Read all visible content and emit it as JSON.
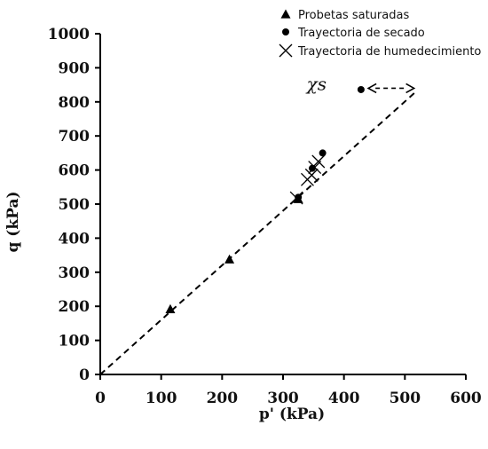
{
  "chart_data": {
    "type": "scatter",
    "title": "",
    "xlabel": "p' (kPa)",
    "ylabel": "q (kPa)",
    "xlim": [
      0,
      600
    ],
    "ylim": [
      0,
      1000
    ],
    "xticks": [
      0,
      100,
      200,
      300,
      400,
      500,
      600
    ],
    "yticks": [
      0,
      100,
      200,
      300,
      400,
      500,
      600,
      700,
      800,
      900,
      1000
    ],
    "grid": false,
    "legend_position": "top-right",
    "series": [
      {
        "name": "Probetas saturadas",
        "marker": "triangle",
        "color": "#000000",
        "points": [
          {
            "x": 115,
            "y": 192
          },
          {
            "x": 212,
            "y": 338
          },
          {
            "x": 325,
            "y": 515
          }
        ]
      },
      {
        "name": "Trayectoria de secado",
        "marker": "circle",
        "color": "#000000",
        "points": [
          {
            "x": 325,
            "y": 520
          },
          {
            "x": 348,
            "y": 605
          },
          {
            "x": 365,
            "y": 650
          },
          {
            "x": 428,
            "y": 836
          }
        ]
      },
      {
        "name": "Trayectoria de humedecimiento",
        "marker": "x",
        "color": "#000000",
        "points": [
          {
            "x": 322,
            "y": 518
          },
          {
            "x": 340,
            "y": 572
          },
          {
            "x": 347,
            "y": 585
          },
          {
            "x": 352,
            "y": 608
          },
          {
            "x": 358,
            "y": 625
          }
        ]
      }
    ],
    "reference_line": {
      "style": "dashed",
      "color": "#000000",
      "from": {
        "x": 0,
        "y": 0
      },
      "to": {
        "x": 520,
        "y": 833
      }
    },
    "annotations": [
      {
        "text": "χs",
        "x": 400,
        "y": 840,
        "arrow": {
          "from_x": 515,
          "to_x": 440,
          "y": 840,
          "bidirectional": true
        }
      }
    ]
  }
}
